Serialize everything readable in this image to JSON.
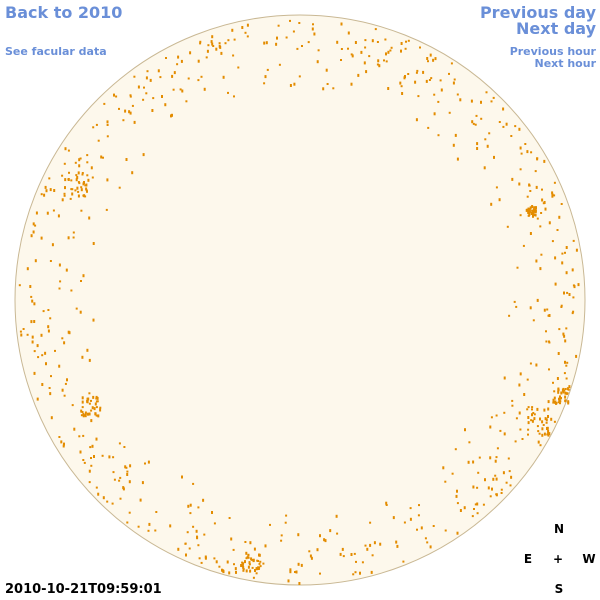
{
  "nav": {
    "back": "Back to 2010",
    "facular_data": "See facular data",
    "previous_day": "Previous day",
    "next_day": "Next day",
    "previous_hour": "Previous hour",
    "next_hour": "Next hour"
  },
  "timestamp": "2010-10-21T09:59:01",
  "compass": {
    "north": "N",
    "east": "E",
    "center": "+",
    "west": "W",
    "south": "S"
  }
}
